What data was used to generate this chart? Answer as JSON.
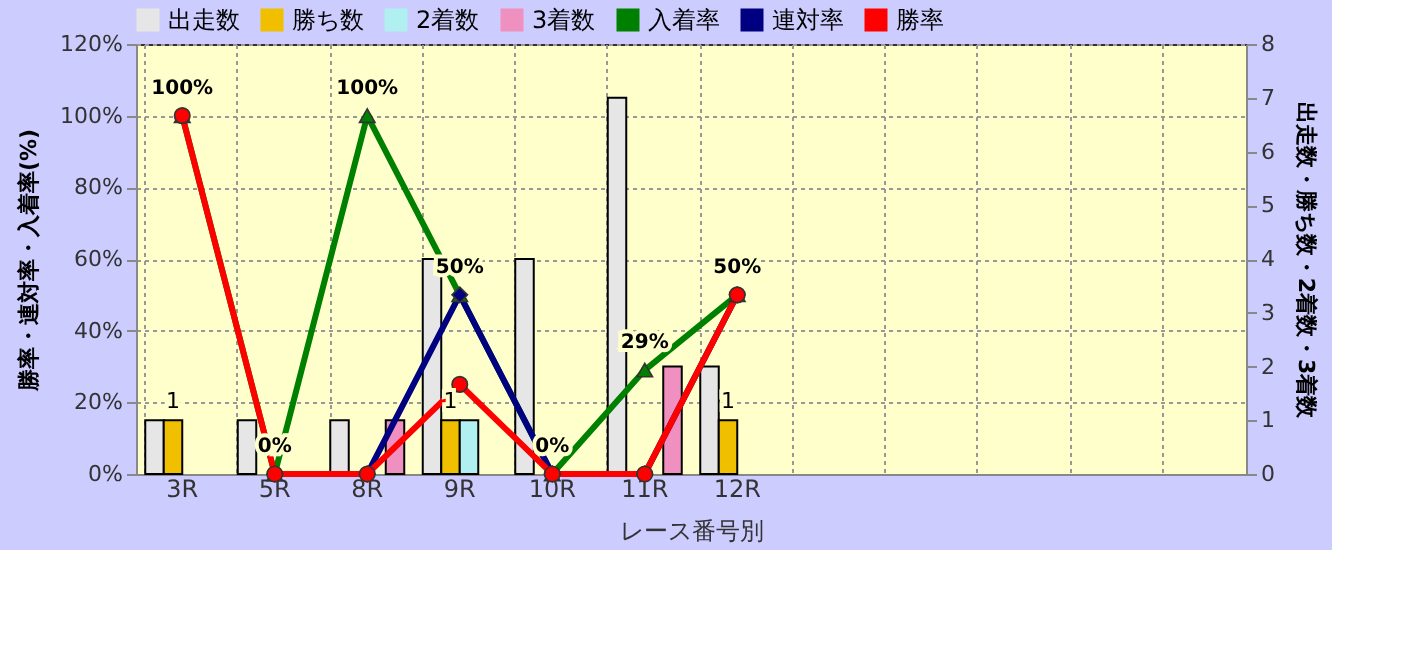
{
  "chart_data": {
    "type": "bar",
    "xlabel": "レース番号別",
    "ylabel": "勝率・連対率・入着率(%)",
    "y2label": "出走数・勝ち数・2着数・3着数",
    "categories": [
      "3R",
      "5R",
      "8R",
      "9R",
      "10R",
      "11R",
      "12R",
      null,
      null,
      null,
      null,
      null
    ],
    "series": [
      {
        "name": "出走数",
        "axis": "y2",
        "color": "#e6e6e6",
        "values": [
          1,
          1,
          1,
          4,
          4,
          7,
          2,
          null,
          null,
          null,
          null,
          null
        ]
      },
      {
        "name": "勝ち数",
        "axis": "y2",
        "color": "#f0c000",
        "values": [
          1,
          0,
          0,
          1,
          0,
          0,
          1,
          null,
          null,
          null,
          null,
          null
        ],
        "value_labels": [
          "1",
          null,
          null,
          "1",
          null,
          null,
          "1",
          null,
          null,
          null,
          null,
          null
        ]
      },
      {
        "name": "2着数",
        "axis": "y2",
        "color": "#b0f0f0",
        "values": [
          0,
          0,
          0,
          1,
          0,
          0,
          0,
          null,
          null,
          null,
          null,
          null
        ]
      },
      {
        "name": "3着数",
        "axis": "y2",
        "color": "#f090c0",
        "values": [
          0,
          0,
          1,
          0,
          0,
          2,
          0,
          null,
          null,
          null,
          null,
          null
        ]
      },
      {
        "name": "入着率",
        "type": "line",
        "color": "#008000",
        "marker": "triangle",
        "values": [
          100,
          0,
          100,
          50,
          0,
          29,
          50,
          null,
          null,
          null,
          null,
          null
        ],
        "value_labels": [
          "100%",
          "0%",
          "100%",
          "50%",
          "0%",
          "29%",
          "50%",
          null,
          null,
          null,
          null,
          null
        ]
      },
      {
        "name": "連対率",
        "type": "line",
        "color": "#000080",
        "marker": "diamond",
        "values": [
          null,
          0,
          0,
          50,
          0,
          0,
          50,
          null,
          null,
          null,
          null,
          null
        ]
      },
      {
        "name": "勝率",
        "type": "line",
        "color": "#ff0000",
        "marker": "circle",
        "values": [
          100,
          0,
          0,
          25,
          0,
          0,
          50,
          null,
          null,
          null,
          null,
          null
        ]
      }
    ],
    "ylim": [
      0,
      120
    ],
    "yticks": [
      {
        "value": 0,
        "label": "0%"
      },
      {
        "value": 20,
        "label": "20%"
      },
      {
        "value": 40,
        "label": "40%"
      },
      {
        "value": 60,
        "label": "60%"
      },
      {
        "value": 80,
        "label": "80%"
      },
      {
        "value": 100,
        "label": "100%"
      },
      {
        "value": 120,
        "label": "120%"
      }
    ],
    "y2lim": [
      0,
      8
    ],
    "y2ticks": [
      0,
      1,
      2,
      3,
      4,
      5,
      6,
      7,
      8
    ],
    "grid": true,
    "legend": "top"
  }
}
